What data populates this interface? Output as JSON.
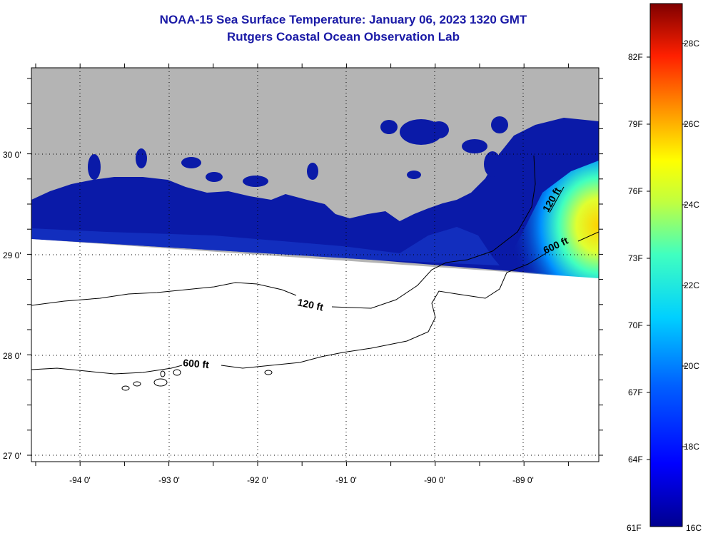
{
  "title": {
    "line1": "NOAA-15 Sea Surface Temperature:  January 06, 2023 1320 GMT",
    "line2": "Rutgers Coastal Ocean Observation Lab"
  },
  "map": {
    "lon_labels": [
      "-94 0'",
      "-93 0'",
      "-92 0'",
      "-91 0'",
      "-90 0'",
      "-89 0'"
    ],
    "lat_labels": [
      "30 0'",
      "29 0'",
      "28 0'",
      "27 0'"
    ],
    "contour_labels": [
      "120 ft",
      "600 ft",
      "120 ft",
      "600 ft"
    ],
    "colors": {
      "land": "#b4b4b4",
      "water_cold": "#0a1aa8",
      "no_data": "#ffffff"
    }
  },
  "colorbar": {
    "fahrenheit": [
      "82F",
      "79F",
      "76F",
      "73F",
      "70F",
      "67F",
      "64F",
      "61F"
    ],
    "celsius": [
      "28C",
      "26C",
      "24C",
      "22C",
      "20C",
      "18C",
      "16C"
    ],
    "gradient": [
      "#00008f",
      "#0000ff",
      "#0080ff",
      "#00ffff",
      "#80ff80",
      "#ffff00",
      "#ff8000",
      "#ff0000",
      "#800000"
    ]
  }
}
